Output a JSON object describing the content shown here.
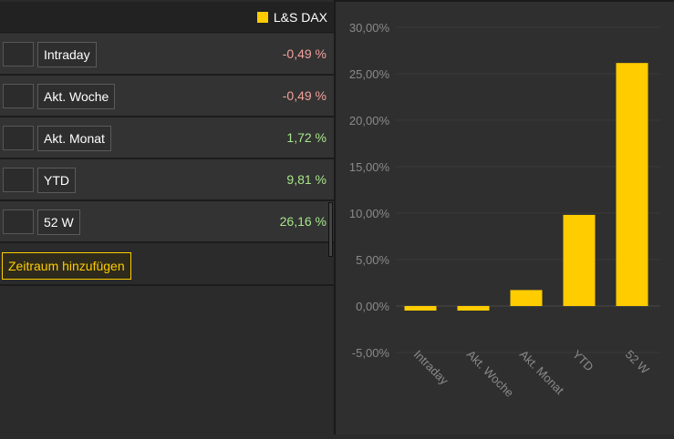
{
  "legend": {
    "label": "L&S DAX",
    "color": "#ffcc00"
  },
  "rows": [
    {
      "label": "Intraday",
      "value": "-0,49 %",
      "sign": "neg"
    },
    {
      "label": "Akt. Woche",
      "value": "-0,49 %",
      "sign": "neg"
    },
    {
      "label": "Akt. Monat",
      "value": "1,72 %",
      "sign": "pos"
    },
    {
      "label": "YTD",
      "value": "9,81 %",
      "sign": "pos"
    },
    {
      "label": "52 W",
      "value": "26,16 %",
      "sign": "pos"
    }
  ],
  "add_button": {
    "label": "Zeitraum hinzufügen"
  },
  "chart_data": {
    "type": "bar",
    "categories": [
      "Intraday",
      "Akt. Woche",
      "Akt. Monat",
      "YTD",
      "52 W"
    ],
    "series": [
      {
        "name": "L&S DAX",
        "values": [
          -0.49,
          -0.49,
          1.72,
          9.81,
          26.16
        ]
      }
    ],
    "ylim": [
      -5,
      30
    ],
    "yticks": [
      -5,
      0,
      5,
      10,
      15,
      20,
      25,
      30
    ],
    "ytick_labels": [
      "-5,00%",
      "0,00%",
      "5,00%",
      "10,00%",
      "15,00%",
      "20,00%",
      "25,00%",
      "30,00%"
    ],
    "bar_color": "#ffcc00",
    "grid": true,
    "xlabel": "",
    "ylabel": "",
    "title": ""
  }
}
